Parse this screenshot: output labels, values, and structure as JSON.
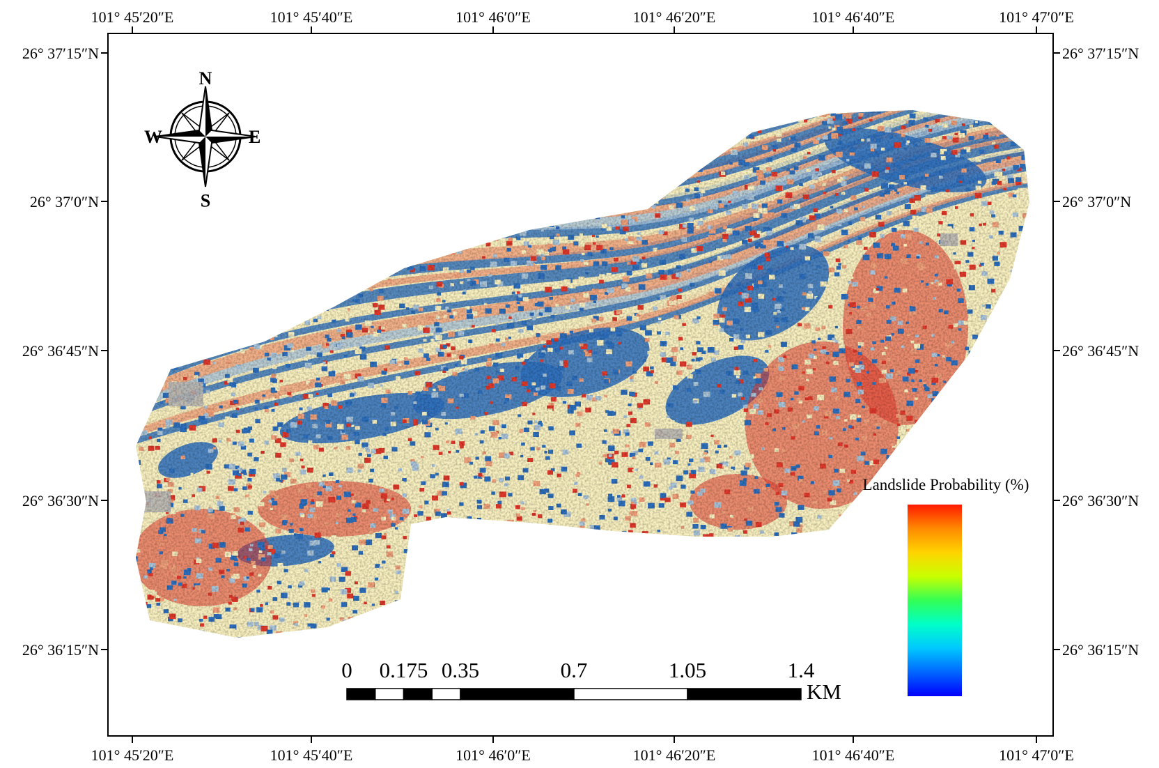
{
  "map": {
    "lon_labels": [
      "101° 45′20″E",
      "101° 45′40″E",
      "101° 46′0″E",
      "101° 46′20″E",
      "101° 46′40″E",
      "101° 47′0″E"
    ],
    "lat_labels": [
      "26° 37′15″N",
      "26° 37′0″N",
      "26° 36′45″N",
      "26° 36′30″N",
      "26° 36′15″N"
    ],
    "compass": {
      "north": "N",
      "south": "S",
      "east": "E",
      "west": "W"
    },
    "scale_bar": {
      "labels": [
        "0",
        "0.175",
        "0.35",
        "0.7",
        "1.05",
        "1.4"
      ],
      "values": [
        0,
        0.175,
        0.35,
        0.7,
        1.05,
        1.4
      ],
      "unit": "KM"
    },
    "legend": {
      "title": "Landslide Probability (%)",
      "colors": [
        "#ff1a00",
        "#ff8a00",
        "#ffd400",
        "#c8ff00",
        "#33ff55",
        "#00ffc8",
        "#00c8ff",
        "#0066ff",
        "#0000ff"
      ]
    },
    "raster_colors": {
      "very_low": "#2d6fbd",
      "low": "#aac4d9",
      "moderate": "#f7efbf",
      "high": "#efa07a",
      "very_high": "#e0392b",
      "no_data_gray": "#b7b5b1"
    }
  }
}
